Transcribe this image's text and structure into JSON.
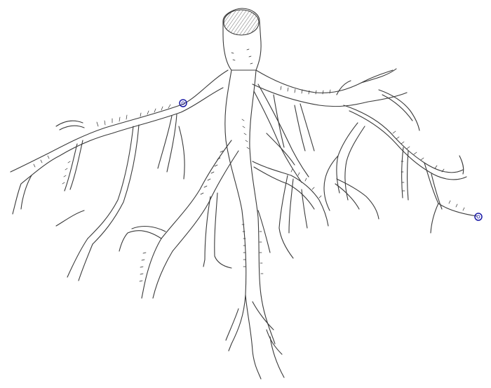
{
  "diagram": {
    "subject": "",
    "colors": {
      "outline": "#3a3a3a",
      "background": "#ffffff",
      "marker": "#1a1aa6"
    },
    "markers": [
      {
        "name": "upper-left-marker"
      },
      {
        "name": "right-tip-marker"
      }
    ]
  }
}
